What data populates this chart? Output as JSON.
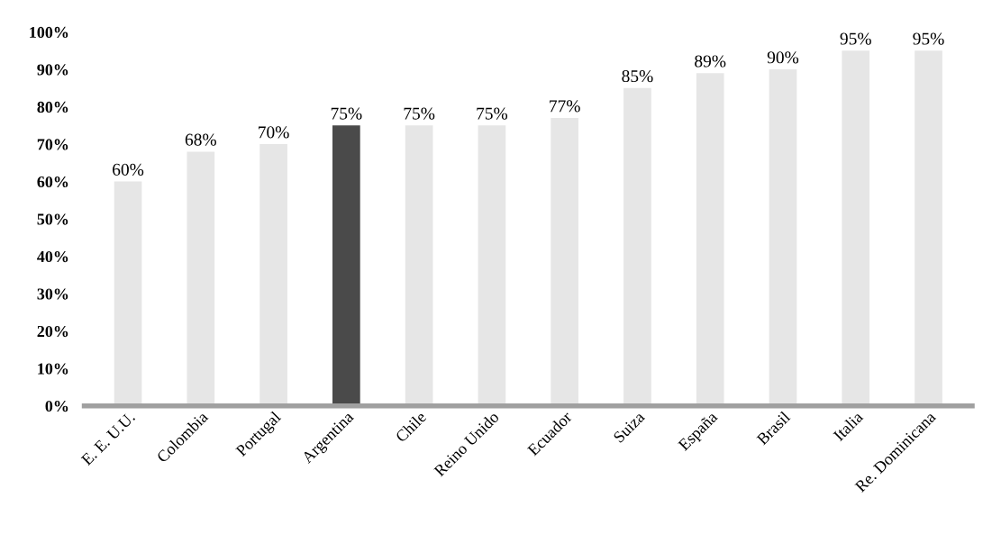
{
  "chart_data": {
    "type": "bar",
    "categories": [
      "E. E. U.U.",
      "Colombia",
      "Portugal",
      "Argentina",
      "Chile",
      "Reino Unido",
      "Ecuador",
      "Suiza",
      "España",
      "Brasil",
      "Italia",
      "Re. Dominicana"
    ],
    "values": [
      60,
      68,
      70,
      75,
      75,
      75,
      77,
      85,
      89,
      90,
      95,
      95
    ],
    "colors": [
      "#e6e6e6",
      "#e6e6e6",
      "#e6e6e6",
      "#4a4a4a",
      "#e6e6e6",
      "#e6e6e6",
      "#e6e6e6",
      "#e6e6e6",
      "#e6e6e6",
      "#e6e6e6",
      "#e6e6e6",
      "#e6e6e6"
    ],
    "value_labels": [
      "60%",
      "68%",
      "70%",
      "75%",
      "75%",
      "75%",
      "77%",
      "85%",
      "89%",
      "90%",
      "95%",
      "95%"
    ],
    "ylim": [
      0,
      100
    ],
    "yticks": [
      {
        "value": 0,
        "label": "0%"
      },
      {
        "value": 10,
        "label": "10%"
      },
      {
        "value": 20,
        "label": "20%"
      },
      {
        "value": 30,
        "label": "30%"
      },
      {
        "value": 40,
        "label": "40%"
      },
      {
        "value": 50,
        "label": "50%"
      },
      {
        "value": 60,
        "label": "60%"
      },
      {
        "value": 70,
        "label": "70%"
      },
      {
        "value": 80,
        "label": "80%"
      },
      {
        "value": 90,
        "label": "90%"
      },
      {
        "value": 100,
        "label": "100%"
      }
    ],
    "grid": false
  }
}
